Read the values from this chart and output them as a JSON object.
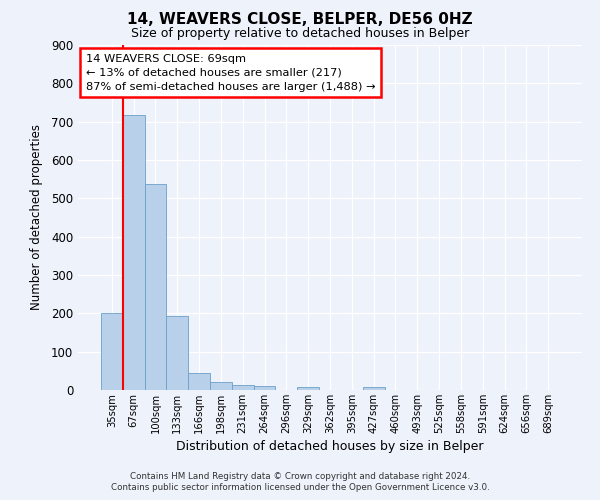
{
  "title": "14, WEAVERS CLOSE, BELPER, DE56 0HZ",
  "subtitle": "Size of property relative to detached houses in Belper",
  "xlabel": "Distribution of detached houses by size in Belper",
  "ylabel": "Number of detached properties",
  "bin_labels": [
    "35sqm",
    "67sqm",
    "100sqm",
    "133sqm",
    "166sqm",
    "198sqm",
    "231sqm",
    "264sqm",
    "296sqm",
    "329sqm",
    "362sqm",
    "395sqm",
    "427sqm",
    "460sqm",
    "493sqm",
    "525sqm",
    "558sqm",
    "591sqm",
    "624sqm",
    "656sqm",
    "689sqm"
  ],
  "bar_values": [
    200,
    717,
    537,
    192,
    44,
    20,
    14,
    10,
    0,
    9,
    0,
    0,
    8,
    0,
    0,
    0,
    0,
    0,
    0,
    0,
    0
  ],
  "bar_color": "#b8d0ea",
  "bar_edge_color": "#6ca0c8",
  "vline_color": "red",
  "vline_pos": 1.5,
  "ylim": [
    0,
    900
  ],
  "yticks": [
    0,
    100,
    200,
    300,
    400,
    500,
    600,
    700,
    800,
    900
  ],
  "annotation_title": "14 WEAVERS CLOSE: 69sqm",
  "annotation_line1": "← 13% of detached houses are smaller (217)",
  "annotation_line2": "87% of semi-detached houses are larger (1,488) →",
  "footer_line1": "Contains HM Land Registry data © Crown copyright and database right 2024.",
  "footer_line2": "Contains public sector information licensed under the Open Government Licence v3.0.",
  "background_color": "#eef2fb",
  "plot_bg_color": "#eef2fb",
  "title_fontsize": 11,
  "subtitle_fontsize": 9
}
